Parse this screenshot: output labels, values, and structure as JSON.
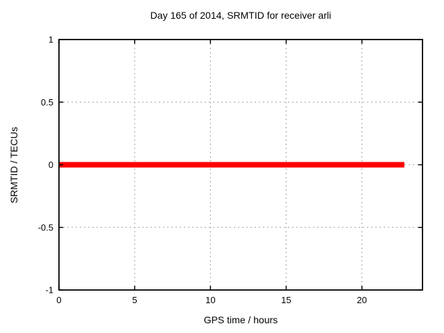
{
  "chart_data": {
    "type": "line",
    "title": "Day 165 of 2014, SRMTID for receiver arli",
    "xlabel": "GPS time / hours",
    "ylabel": "SRMTID / TECUs",
    "xlim": [
      0,
      24
    ],
    "ylim": [
      -1,
      1
    ],
    "xticks": [
      0,
      5,
      10,
      15,
      20
    ],
    "yticks": [
      1,
      0.5,
      0,
      -0.5,
      -1
    ],
    "grid": true,
    "legend": "none",
    "colors": {
      "series_red": "#ff0000",
      "grid_gray": "#a0a0a0",
      "border_black": "#000000",
      "background": "#ffffff"
    },
    "series": [
      {
        "name": "SRMTID",
        "color": "#ff0000",
        "line_width": 8,
        "points": [
          [
            0,
            0
          ],
          [
            22.8,
            0
          ]
        ]
      }
    ]
  }
}
